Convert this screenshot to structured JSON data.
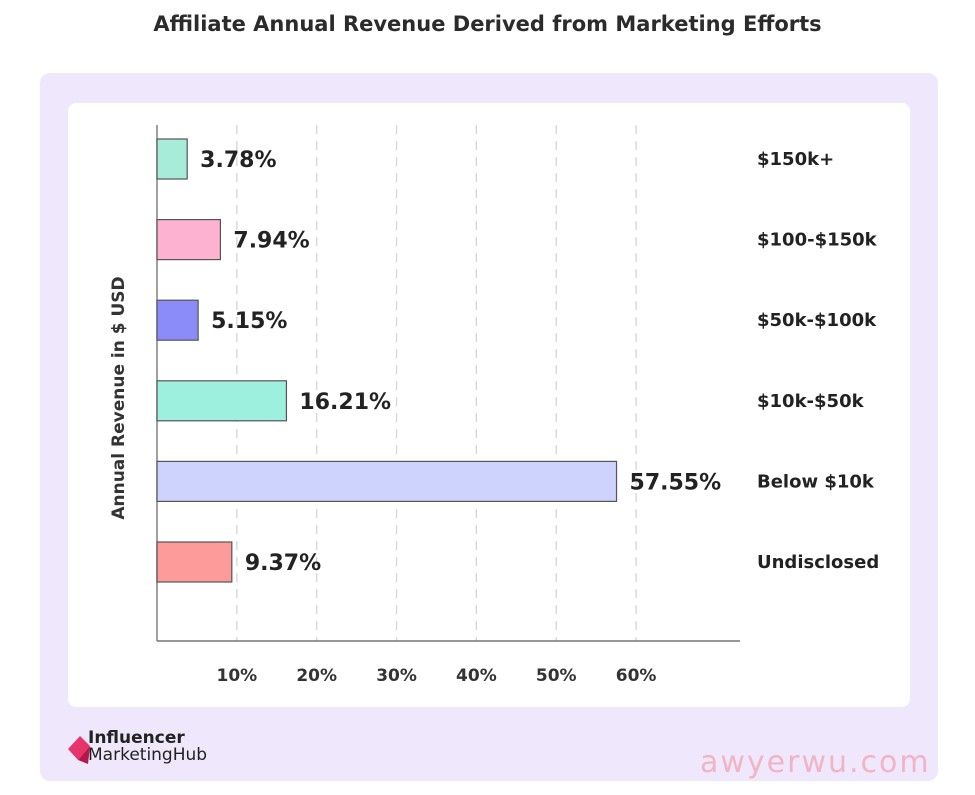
{
  "title": "Affiliate Annual Revenue Derived from Marketing Efforts",
  "chart_data": {
    "type": "bar",
    "orientation": "horizontal",
    "categories": [
      "$150k+",
      "$100-$150k",
      "$50k-$100k",
      "$10k-$50k",
      "Below $10k",
      "Undisclosed"
    ],
    "values": [
      3.78,
      7.94,
      5.15,
      16.21,
      57.55,
      9.37
    ],
    "value_labels": [
      "3.78%",
      "7.94%",
      "5.15%",
      "16.21%",
      "57.55%",
      "9.37%"
    ],
    "colors": [
      "#a6ecd8",
      "#fdb2d2",
      "#8b8cf9",
      "#9df0dd",
      "#cdd3fd",
      "#fd9a9a"
    ],
    "xticks": [
      "10%",
      "20%",
      "30%",
      "40%",
      "50%",
      "60%"
    ],
    "xtick_values": [
      10,
      20,
      30,
      40,
      50,
      60
    ],
    "xlim": [
      0,
      73
    ],
    "ylabel": "Annual Revenue in $ USD",
    "xlabel": "",
    "grid": "vertical dashed"
  },
  "logo": {
    "line1": "Influencer",
    "line2": "MarketingHub"
  },
  "watermark": "awyerwu.com"
}
